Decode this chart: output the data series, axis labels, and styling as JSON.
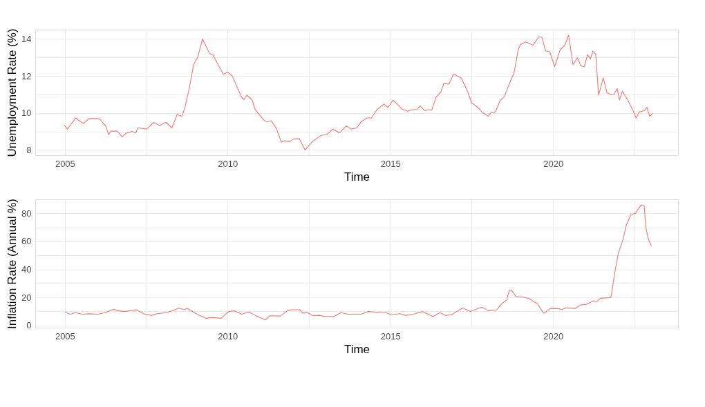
{
  "chart_data": [
    {
      "type": "line",
      "xlabel": "Time",
      "ylabel": "Unemployment Rate (%)",
      "grid": true,
      "xlim": [
        2004.09,
        2023.84
      ],
      "ylim": [
        7.72,
        14.5
      ],
      "xticks": [
        2005,
        {
          "value": 2007.5,
          "label": null
        },
        2010,
        {
          "value": 2012.5,
          "label": null
        },
        2015,
        {
          "value": 2017.5,
          "label": null
        },
        2020,
        {
          "value": 2022.5,
          "label": null
        }
      ],
      "yticks": [
        8,
        {
          "value": 9,
          "label": null
        },
        10,
        {
          "value": 11,
          "label": null
        },
        12,
        {
          "value": 13,
          "label": null
        },
        14
      ],
      "x": [
        2004.98,
        2005.08,
        2005.33,
        2005.57,
        2005.74,
        2006.02,
        2006.1,
        2006.26,
        2006.35,
        2006.41,
        2006.61,
        2006.76,
        2006.89,
        2007.07,
        2007.18,
        2007.24,
        2007.51,
        2007.73,
        2007.91,
        2008.1,
        2008.29,
        2008.45,
        2008.59,
        2008.68,
        2008.82,
        2008.96,
        2009.08,
        2009.23,
        2009.45,
        2009.54,
        2009.87,
        2010.0,
        2010.15,
        2010.43,
        2010.5,
        2010.59,
        2010.75,
        2010.85,
        2011.13,
        2011.23,
        2011.34,
        2011.5,
        2011.65,
        2011.76,
        2011.9,
        2012.02,
        2012.2,
        2012.38,
        2012.6,
        2012.88,
        2013.05,
        2013.23,
        2013.44,
        2013.65,
        2013.79,
        2013.97,
        2014.1,
        2014.28,
        2014.42,
        2014.59,
        2014.8,
        2014.93,
        2015.08,
        2015.22,
        2015.36,
        2015.54,
        2015.68,
        2015.82,
        2015.91,
        2016.06,
        2016.17,
        2016.27,
        2016.41,
        2016.55,
        2016.64,
        2016.8,
        2016.94,
        2017.18,
        2017.39,
        2017.5,
        2017.67,
        2017.85,
        2018.01,
        2018.09,
        2018.23,
        2018.37,
        2018.51,
        2018.65,
        2018.8,
        2018.93,
        2019.0,
        2019.16,
        2019.38,
        2019.56,
        2019.66,
        2019.77,
        2019.9,
        2020.05,
        2020.22,
        2020.36,
        2020.48,
        2020.61,
        2020.75,
        2020.85,
        2020.96,
        2021.06,
        2021.15,
        2021.22,
        2021.31,
        2021.4,
        2021.54,
        2021.66,
        2021.8,
        2021.88,
        2021.97,
        2022.04,
        2022.13,
        2022.29,
        2022.46,
        2022.55,
        2022.65,
        2022.8,
        2022.88,
        2022.97,
        2023.06
      ],
      "series": [
        {
          "color": "#f8766d",
          "values": [
            9.34,
            9.13,
            9.73,
            9.43,
            9.7,
            9.7,
            9.62,
            9.28,
            8.83,
            9.02,
            9.02,
            8.72,
            8.92,
            9.0,
            8.92,
            9.2,
            9.13,
            9.49,
            9.32,
            9.5,
            9.2,
            9.92,
            9.82,
            10.24,
            11.32,
            12.64,
            13.0,
            14.0,
            13.21,
            13.15,
            12.1,
            12.2,
            11.98,
            10.84,
            10.72,
            10.96,
            10.72,
            10.18,
            9.58,
            9.52,
            9.58,
            9.16,
            8.42,
            8.5,
            8.44,
            8.59,
            8.62,
            8.0,
            8.44,
            8.8,
            8.83,
            9.13,
            8.92,
            9.31,
            9.13,
            9.19,
            9.52,
            9.73,
            9.73,
            10.18,
            10.48,
            10.3,
            10.69,
            10.48,
            10.21,
            10.1,
            10.18,
            10.18,
            10.39,
            10.12,
            10.18,
            10.15,
            10.87,
            11.12,
            11.59,
            11.56,
            12.1,
            11.89,
            11.08,
            10.54,
            10.33,
            10.0,
            9.82,
            10.0,
            10.06,
            10.66,
            10.9,
            11.56,
            12.16,
            13.42,
            13.7,
            13.84,
            13.66,
            14.11,
            14.08,
            13.36,
            13.3,
            12.5,
            13.42,
            13.66,
            14.2,
            12.62,
            12.98,
            12.55,
            12.5,
            13.15,
            12.91,
            13.34,
            13.18,
            10.96,
            11.9,
            11.08,
            10.99,
            11.02,
            11.32,
            10.7,
            11.17,
            10.72,
            10.12,
            9.73,
            10.06,
            10.12,
            10.3,
            9.82,
            10.0
          ]
        }
      ]
    },
    {
      "type": "line",
      "xlabel": "Time",
      "ylabel": "Inflation Rate (Annual %)",
      "grid": true,
      "xlim": [
        2004.09,
        2023.84
      ],
      "ylim": [
        -1.6,
        90
      ],
      "xticks": [
        2005,
        {
          "value": 2007.5,
          "label": null
        },
        2010,
        {
          "value": 2012.5,
          "label": null
        },
        2015,
        {
          "value": 2017.5,
          "label": null
        },
        2020,
        {
          "value": 2022.5,
          "label": null
        }
      ],
      "yticks": [
        0,
        {
          "value": 10,
          "label": null
        },
        20,
        {
          "value": 30,
          "label": null
        },
        40,
        {
          "value": 50,
          "label": null
        },
        60,
        {
          "value": 70,
          "label": null
        },
        80
      ],
      "x": [
        2005.0,
        2005.17,
        2005.32,
        2005.53,
        2005.74,
        2006.02,
        2006.23,
        2006.49,
        2006.65,
        2006.86,
        2007.19,
        2007.45,
        2007.66,
        2007.84,
        2008.12,
        2008.33,
        2008.5,
        2008.68,
        2008.75,
        2009.06,
        2009.34,
        2009.52,
        2009.8,
        2010.04,
        2010.22,
        2010.43,
        2010.64,
        2010.85,
        2011.16,
        2011.3,
        2011.62,
        2011.83,
        2011.97,
        2012.21,
        2012.32,
        2012.46,
        2012.63,
        2012.81,
        2013.02,
        2013.27,
        2013.48,
        2013.69,
        2014.1,
        2014.31,
        2014.49,
        2014.87,
        2015.01,
        2015.29,
        2015.47,
        2015.71,
        2015.99,
        2016.31,
        2016.52,
        2016.69,
        2016.87,
        2017.22,
        2017.46,
        2017.81,
        2018.02,
        2018.27,
        2018.44,
        2018.58,
        2018.65,
        2018.72,
        2018.86,
        2019.07,
        2019.28,
        2019.42,
        2019.52,
        2019.66,
        2019.73,
        2019.91,
        2020.19,
        2020.26,
        2020.4,
        2020.68,
        2020.85,
        2021.03,
        2021.24,
        2021.35,
        2021.45,
        2021.77,
        2021.8,
        2021.9,
        2022.01,
        2022.15,
        2022.25,
        2022.39,
        2022.53,
        2022.71,
        2022.8,
        2022.85,
        2022.92,
        2023.02
      ],
      "series": [
        {
          "color": "#f8766d",
          "values": [
            9.2,
            8.0,
            9.1,
            8.0,
            8.3,
            8.0,
            9.1,
            11.5,
            10.4,
            9.9,
            11.2,
            8.0,
            7.2,
            8.4,
            9.1,
            10.7,
            12.3,
            11.2,
            12.3,
            8.0,
            5.1,
            5.6,
            5.1,
            10.0,
            10.4,
            8.0,
            9.6,
            7.2,
            4.0,
            6.9,
            6.7,
            10.4,
            11.2,
            11.2,
            8.8,
            9.1,
            6.9,
            7.2,
            6.4,
            6.4,
            9.1,
            8.0,
            8.0,
            9.9,
            9.6,
            9.1,
            7.6,
            8.4,
            7.2,
            8.0,
            9.9,
            6.4,
            9.1,
            7.2,
            7.5,
            12.4,
            10.0,
            13.1,
            10.4,
            11.2,
            15.9,
            18.3,
            24.7,
            25.2,
            20.7,
            20.2,
            19.1,
            16.7,
            15.6,
            10.4,
            8.8,
            12.0,
            12.0,
            11.2,
            12.7,
            12.0,
            14.7,
            15.1,
            17.5,
            17.1,
            19.4,
            19.9,
            23.1,
            38.2,
            51.8,
            61.4,
            71.7,
            78.9,
            80.0,
            86.1,
            85.3,
            70.1,
            62.2,
            56.6
          ]
        }
      ]
    }
  ]
}
